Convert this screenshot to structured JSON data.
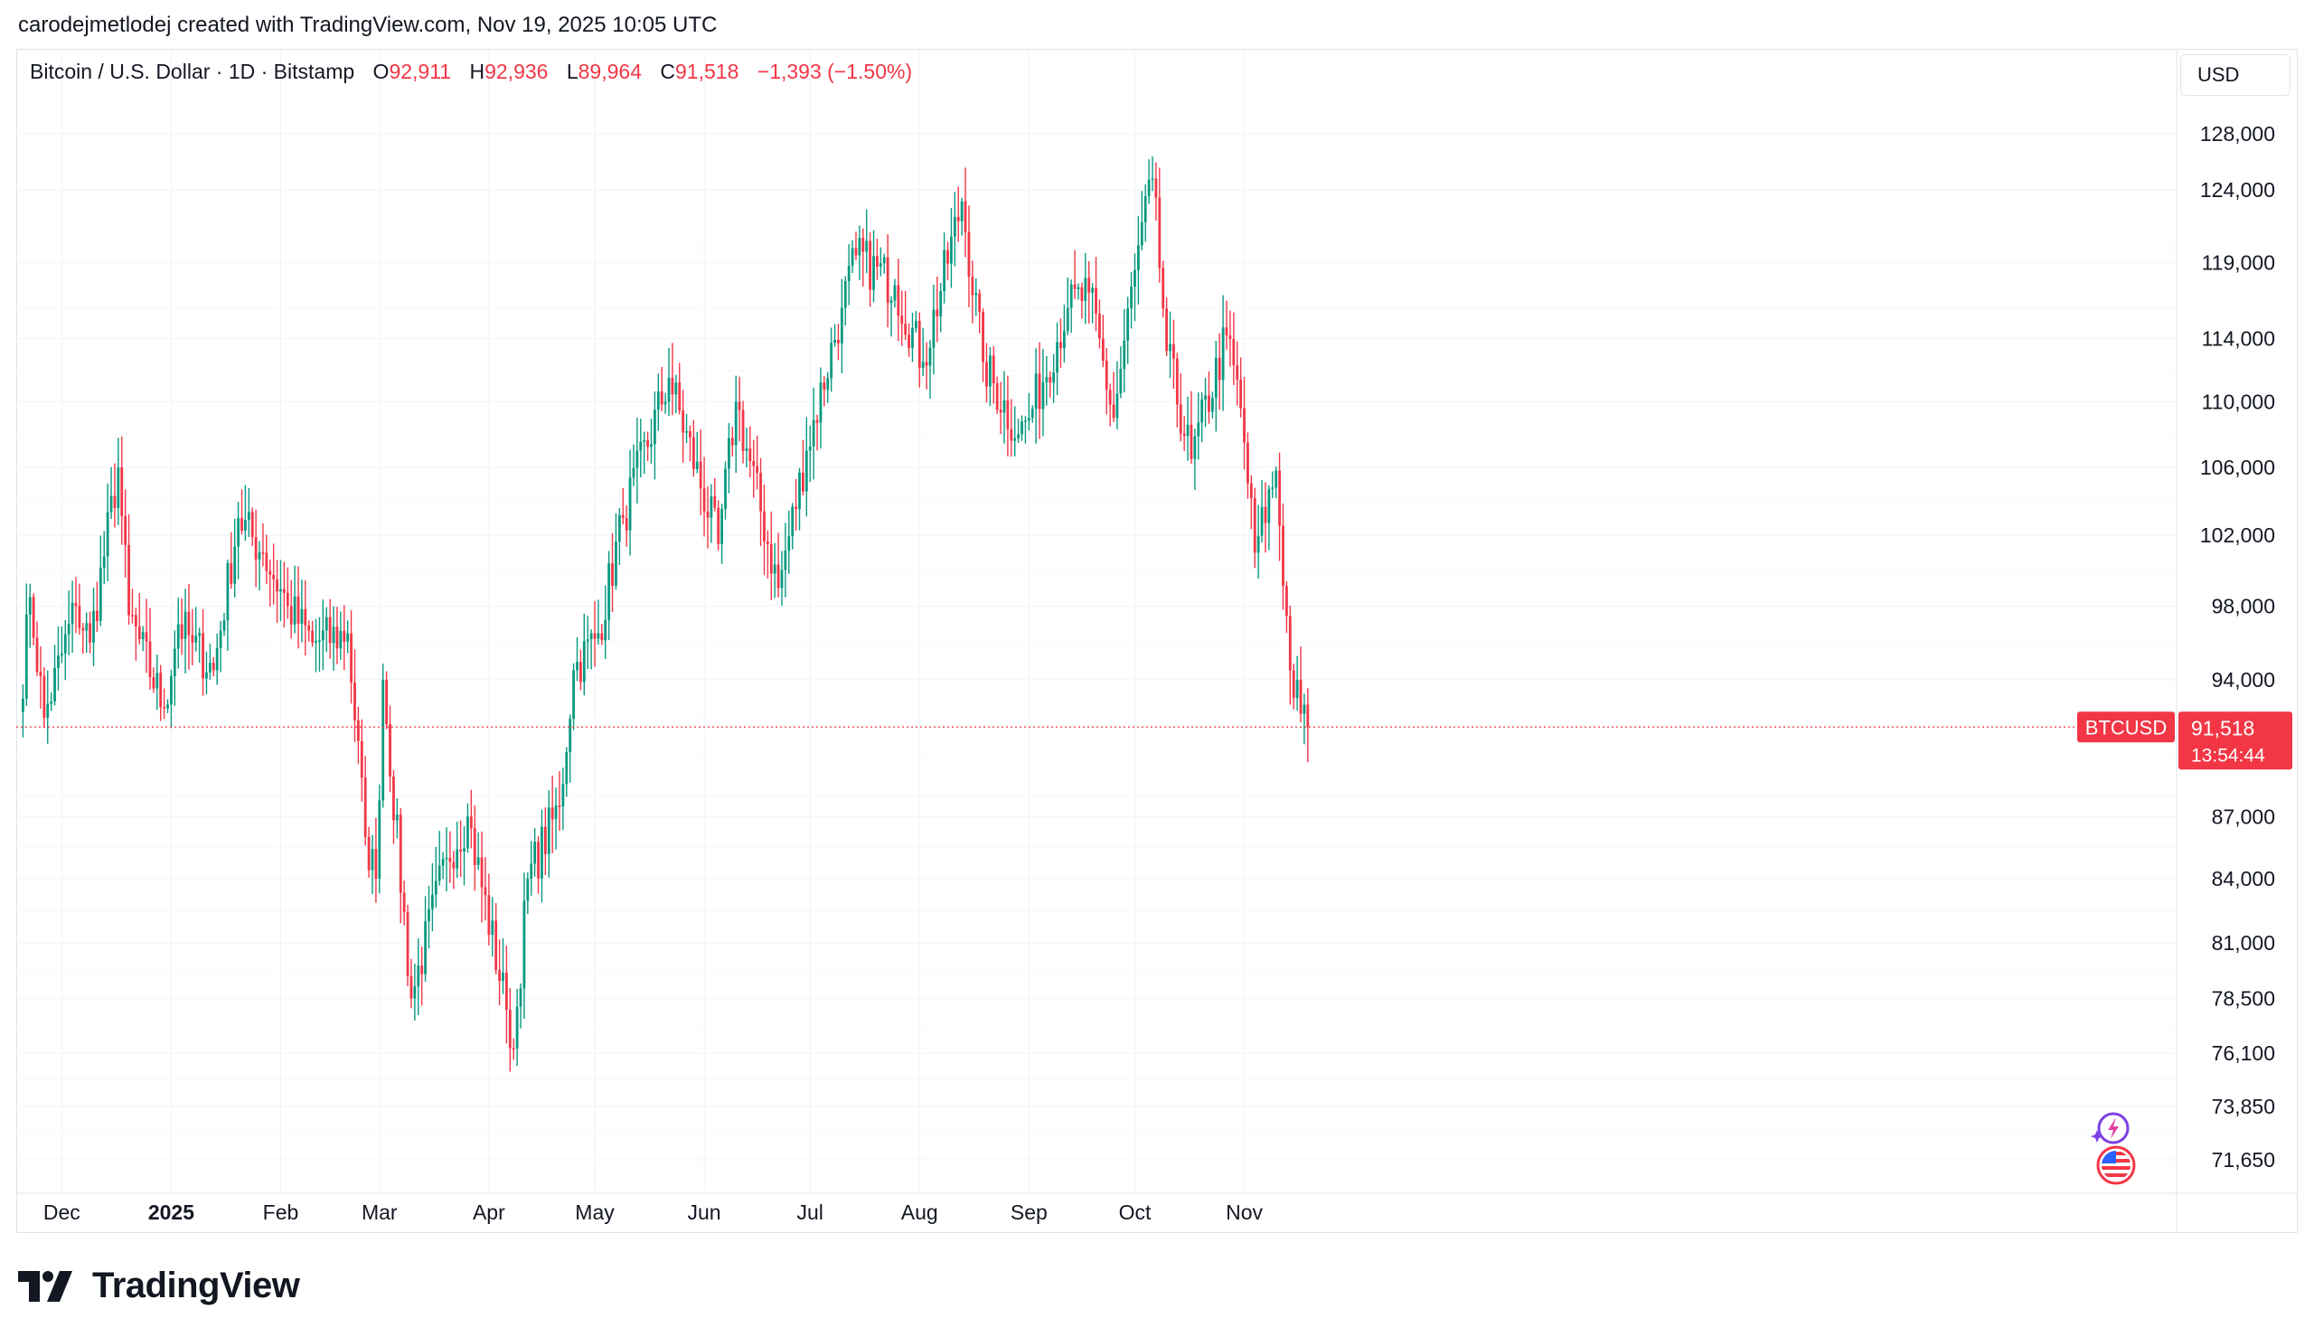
{
  "header": {
    "credit": "carodejmetlodej created with TradingView.com, Nov 19, 2025 10:05 UTC"
  },
  "legend": {
    "symbol": "Bitcoin / U.S. Dollar · 1D · Bitstamp",
    "open_label": "O",
    "open_value": "92,911",
    "high_label": "H",
    "high_value": "92,936",
    "low_label": "L",
    "low_value": "89,964",
    "close_label": "C",
    "close_value": "91,518",
    "change": "−1,393 (−1.50%)"
  },
  "currency": "USD",
  "price_badge": {
    "ticker": "BTCUSD",
    "price": "91,518",
    "countdown": "13:54:44"
  },
  "brand": {
    "name": "TradingView"
  },
  "icons": {
    "ai_icon": "sparkle-lightning-icon",
    "flag_icon": "us-flag-icon",
    "logo_icon": "tradingview-logo-icon"
  },
  "colors": {
    "up": "#089981",
    "down": "#f23645",
    "grid": "#f0f3fa",
    "text": "#131722"
  },
  "chart_data": {
    "type": "candlestick",
    "symbol": "BTCUSD",
    "interval": "1D",
    "x_ticks": [
      "Dec",
      "2025",
      "Feb",
      "Mar",
      "Apr",
      "May",
      "Jun",
      "Jul",
      "Aug",
      "Sep",
      "Oct",
      "Nov"
    ],
    "x_tick_dates": [
      "2024-12-01",
      "2025-01-01",
      "2025-02-01",
      "2025-03-01",
      "2025-04-01",
      "2025-05-01",
      "2025-06-01",
      "2025-07-01",
      "2025-08-01",
      "2025-09-01",
      "2025-10-01",
      "2025-11-01"
    ],
    "y_ticks": [
      "128,000",
      "124,000",
      "119,000",
      "114,000",
      "110,000",
      "106,000",
      "102,000",
      "98,000",
      "94,000",
      "87,000",
      "84,000",
      "81,000",
      "78,500",
      "76,100",
      "73,850",
      "71,650"
    ],
    "y_tick_values": [
      128000,
      124000,
      119000,
      114000,
      110000,
      106000,
      102000,
      98000,
      94000,
      87000,
      84000,
      81000,
      78500,
      76100,
      73850,
      71650
    ],
    "y_scale": "log",
    "last_price": 91518,
    "grid": true,
    "key_closes": [
      {
        "date": "2024-11-19",
        "close": 92300
      },
      {
        "date": "2024-11-22",
        "close": 98500
      },
      {
        "date": "2024-11-26",
        "close": 92000
      },
      {
        "date": "2024-12-05",
        "close": 98000
      },
      {
        "date": "2024-12-09",
        "close": 96000
      },
      {
        "date": "2024-12-17",
        "close": 106000
      },
      {
        "date": "2024-12-20",
        "close": 97500
      },
      {
        "date": "2024-12-30",
        "close": 92500
      },
      {
        "date": "2025-01-03",
        "close": 97000
      },
      {
        "date": "2025-01-07",
        "close": 96000
      },
      {
        "date": "2025-01-13",
        "close": 94500
      },
      {
        "date": "2025-01-20",
        "close": 103000
      },
      {
        "date": "2025-01-27",
        "close": 101000
      },
      {
        "date": "2025-02-03",
        "close": 98000
      },
      {
        "date": "2025-02-10",
        "close": 96000
      },
      {
        "date": "2025-02-20",
        "close": 96500
      },
      {
        "date": "2025-02-25",
        "close": 86000
      },
      {
        "date": "2025-02-28",
        "close": 84000
      },
      {
        "date": "2025-03-02",
        "close": 94000
      },
      {
        "date": "2025-03-10",
        "close": 78500
      },
      {
        "date": "2025-03-20",
        "close": 85000
      },
      {
        "date": "2025-03-26",
        "close": 87000
      },
      {
        "date": "2025-04-06",
        "close": 78000
      },
      {
        "date": "2025-04-08",
        "close": 76300
      },
      {
        "date": "2025-04-12",
        "close": 84000
      },
      {
        "date": "2025-04-21",
        "close": 87500
      },
      {
        "date": "2025-04-25",
        "close": 94500
      },
      {
        "date": "2025-05-02",
        "close": 96500
      },
      {
        "date": "2025-05-09",
        "close": 103000
      },
      {
        "date": "2025-05-22",
        "close": 111500
      },
      {
        "date": "2025-06-05",
        "close": 101500
      },
      {
        "date": "2025-06-10",
        "close": 110000
      },
      {
        "date": "2025-06-22",
        "close": 99000
      },
      {
        "date": "2025-06-30",
        "close": 107000
      },
      {
        "date": "2025-07-10",
        "close": 116000
      },
      {
        "date": "2025-07-14",
        "close": 119500
      },
      {
        "date": "2025-07-25",
        "close": 117500
      },
      {
        "date": "2025-08-02",
        "close": 112500
      },
      {
        "date": "2025-08-13",
        "close": 123200
      },
      {
        "date": "2025-08-19",
        "close": 112500
      },
      {
        "date": "2025-08-29",
        "close": 108000
      },
      {
        "date": "2025-09-01",
        "close": 109000
      },
      {
        "date": "2025-09-12",
        "close": 116000
      },
      {
        "date": "2025-09-18",
        "close": 117000
      },
      {
        "date": "2025-09-25",
        "close": 109000
      },
      {
        "date": "2025-10-01",
        "close": 118500
      },
      {
        "date": "2025-10-06",
        "close": 124800
      },
      {
        "date": "2025-10-10",
        "close": 113200
      },
      {
        "date": "2025-10-17",
        "close": 106500
      },
      {
        "date": "2025-10-27",
        "close": 114200
      },
      {
        "date": "2025-10-31",
        "close": 109600
      },
      {
        "date": "2025-11-04",
        "close": 101000
      },
      {
        "date": "2025-11-10",
        "close": 105800
      },
      {
        "date": "2025-11-14",
        "close": 94500
      },
      {
        "date": "2025-11-17",
        "close": 92200
      },
      {
        "date": "2025-11-19",
        "close": 91518
      }
    ]
  }
}
